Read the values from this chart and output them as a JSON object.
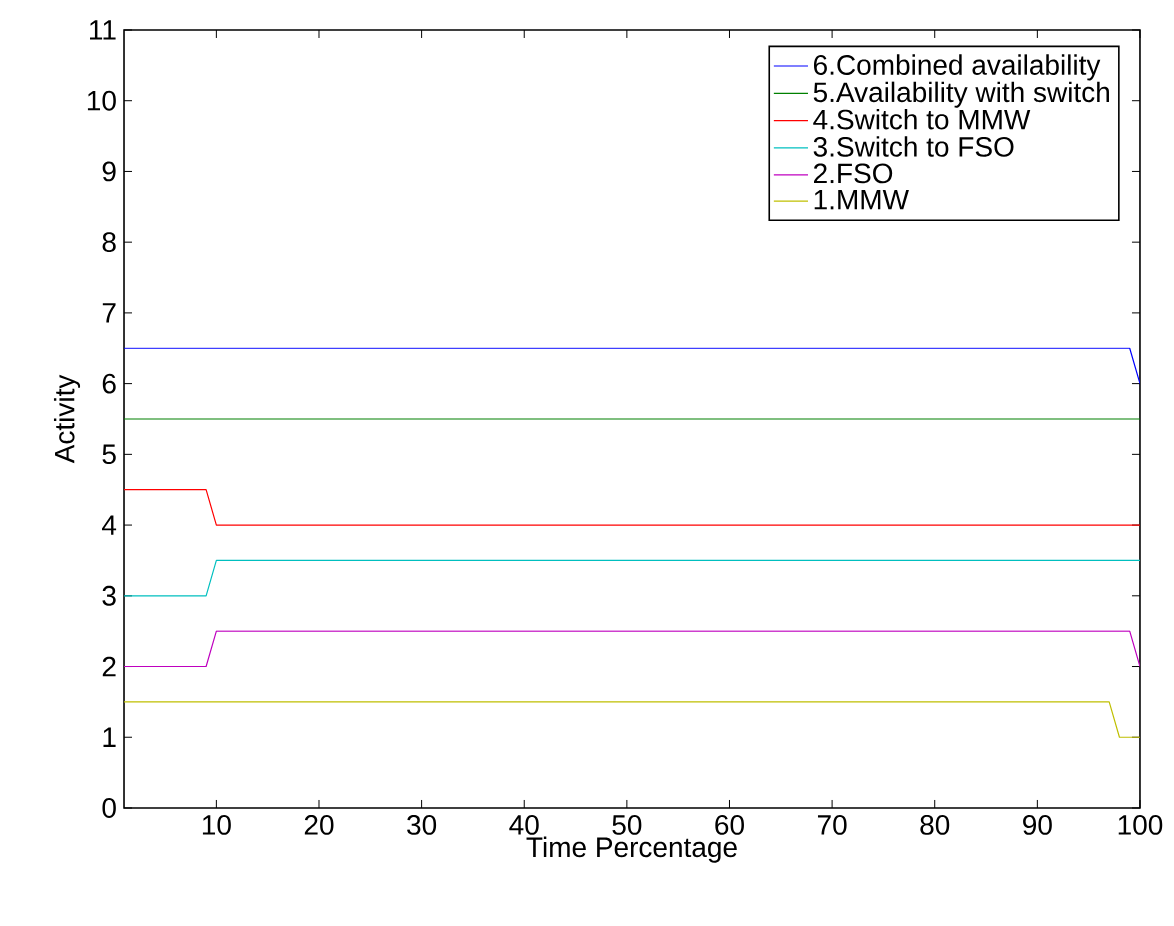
{
  "chart_data": {
    "type": "line",
    "xlabel": "Time Percentage",
    "ylabel": "Activity",
    "xlim": [
      1,
      100
    ],
    "ylim": [
      0,
      11
    ],
    "xticks": [
      10,
      20,
      30,
      40,
      50,
      60,
      70,
      80,
      90,
      100
    ],
    "yticks": [
      0,
      1,
      2,
      3,
      4,
      5,
      6,
      7,
      8,
      9,
      10,
      11
    ],
    "legend": "top right",
    "grid": false,
    "marker": "none",
    "line_style": "solid",
    "series": [
      {
        "name": "6.Combined availability",
        "color": "#0000ff",
        "x": [
          1,
          99,
          100
        ],
        "values": [
          6.5,
          6.5,
          6
        ]
      },
      {
        "name": "5.Availability with switch",
        "color": "#008000",
        "x": [
          1,
          100
        ],
        "values": [
          5.5,
          5.5
        ]
      },
      {
        "name": "4.Switch to MMW",
        "color": "#ff0000",
        "x": [
          1,
          9,
          10,
          100
        ],
        "values": [
          4.5,
          4.5,
          4,
          4
        ]
      },
      {
        "name": "3.Switch to FSO",
        "color": "#00bfbf",
        "x": [
          1,
          9,
          10,
          100
        ],
        "values": [
          3,
          3,
          3.5,
          3.5
        ]
      },
      {
        "name": "2.FSO",
        "color": "#bf00bf",
        "x": [
          1,
          9,
          10,
          99,
          100
        ],
        "values": [
          2,
          2,
          2.5,
          2.5,
          2
        ]
      },
      {
        "name": "1.MMW",
        "color": "#bfbf00",
        "x": [
          1,
          97,
          98,
          100
        ],
        "values": [
          1.5,
          1.5,
          1,
          1
        ]
      }
    ]
  }
}
